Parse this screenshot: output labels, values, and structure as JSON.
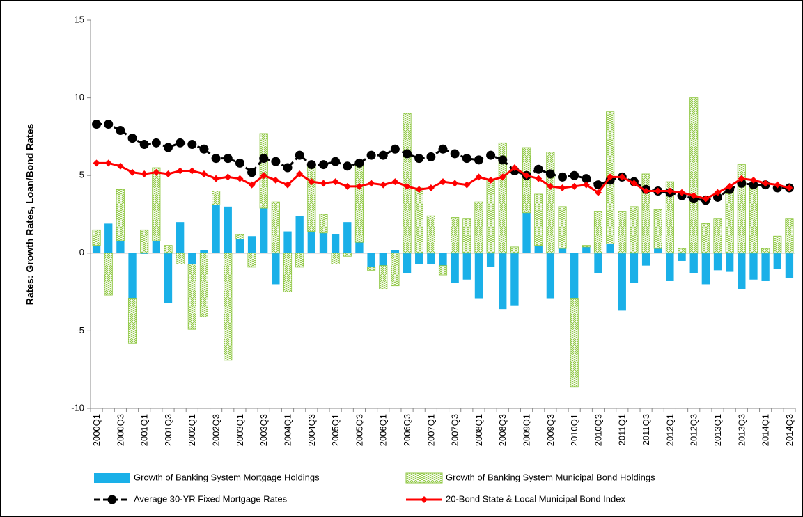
{
  "chart_data": {
    "type": "bar-line",
    "y_axis_label": "Rates:  Growth Rates, Loan/Bond Rates",
    "categories": [
      "2000Q1",
      null,
      "2000Q3",
      null,
      "2001Q1",
      null,
      "2001Q3",
      null,
      "2002Q1",
      null,
      "2002Q3",
      null,
      "2003Q1",
      null,
      "2003Q3",
      null,
      "2004Q1",
      null,
      "2004Q3",
      null,
      "2005Q1",
      null,
      "2005Q3",
      null,
      "2006Q1",
      null,
      "2006Q3",
      null,
      "2007Q1",
      null,
      "2007Q3",
      null,
      "2008Q1",
      null,
      "2008Q3",
      null,
      "2009Q1",
      null,
      "2009Q3",
      null,
      "2010Q1",
      null,
      "2010Q3",
      null,
      "2011Q1",
      null,
      "2011Q3",
      null,
      "2012Q1",
      null,
      "2012Q3",
      null,
      "2013Q1",
      null,
      "2013Q3",
      null,
      "2014Q1",
      null,
      "2014Q3"
    ],
    "ylim": [
      -10,
      15
    ],
    "yticks": [
      -10,
      -5,
      0,
      5,
      10,
      15
    ],
    "stacked": true,
    "series": [
      {
        "name": "Growth of Banking System Mortgage Holdings",
        "kind": "bar",
        "color": "#1ab0e8",
        "values": [
          0.5,
          1.9,
          0.8,
          -2.9,
          -0.05,
          0.8,
          -3.2,
          2.0,
          -0.7,
          0.2,
          3.1,
          3.0,
          0.9,
          1.1,
          2.9,
          -2.0,
          1.4,
          2.4,
          1.4,
          1.3,
          1.2,
          2.0,
          0.7,
          -0.9,
          -0.8,
          0.2,
          -1.3,
          -0.7,
          -0.7,
          -0.8,
          -1.9,
          -1.7,
          -2.9,
          -0.9,
          -3.6,
          -3.4,
          2.6,
          0.5,
          -2.9,
          0.3,
          -2.9,
          0.4,
          -1.3,
          0.6,
          -3.7,
          -1.9,
          -0.8,
          0.3,
          -1.8,
          -0.5,
          -1.3,
          -2.0,
          -1.1,
          -1.2,
          -2.3,
          -1.7,
          -1.8,
          -1.0,
          -1.6
        ]
      },
      {
        "name": "Growth of Banking System Municipal Bond Holdings",
        "kind": "bar",
        "color": "#8dc63f",
        "values": [
          1.0,
          -2.7,
          3.3,
          -2.9,
          1.5,
          4.7,
          0.5,
          -0.7,
          -4.2,
          -4.1,
          0.9,
          -6.9,
          0.3,
          -0.9,
          4.8,
          3.3,
          -2.5,
          -0.9,
          4.3,
          1.2,
          -0.7,
          -0.2,
          5.0,
          -0.2,
          -1.5,
          -2.1,
          9.0,
          4.2,
          2.4,
          -0.6,
          2.3,
          2.2,
          3.3,
          4.7,
          7.1,
          0.4,
          4.2,
          3.3,
          6.5,
          2.7,
          -5.7,
          0.1,
          2.7,
          8.5,
          2.7,
          3.0,
          5.1,
          2.5,
          4.6,
          0.3,
          10.0,
          1.9,
          2.2,
          4.1,
          5.7,
          4.3,
          0.3,
          1.1,
          2.2
        ]
      },
      {
        "name": "Average 30-YR Fixed Mortgage Rates",
        "kind": "line",
        "color": "#000000",
        "dashed": true,
        "marker": "circle",
        "values": [
          8.3,
          8.3,
          7.9,
          7.4,
          7.0,
          7.1,
          6.8,
          7.1,
          7.0,
          6.7,
          6.1,
          6.1,
          5.8,
          5.2,
          6.1,
          5.9,
          5.5,
          6.3,
          5.7,
          5.7,
          5.9,
          5.6,
          5.8,
          6.3,
          6.3,
          6.7,
          6.4,
          6.1,
          6.2,
          6.7,
          6.4,
          6.1,
          6.0,
          6.3,
          6.0,
          5.3,
          5.0,
          5.4,
          5.1,
          4.9,
          5.0,
          4.8,
          4.4,
          4.7,
          4.9,
          4.6,
          4.1,
          4.0,
          3.9,
          3.7,
          3.5,
          3.4,
          3.6,
          4.1,
          4.5,
          4.4,
          4.4,
          4.2,
          4.2
        ]
      },
      {
        "name": "20-Bond State & Local Municipal Bond Index",
        "kind": "line",
        "color": "#ff0000",
        "dashed": false,
        "marker": "diamond",
        "values": [
          5.8,
          5.8,
          5.6,
          5.2,
          5.1,
          5.2,
          5.1,
          5.3,
          5.3,
          5.1,
          4.8,
          4.9,
          4.8,
          4.4,
          5.0,
          4.7,
          4.4,
          5.1,
          4.6,
          4.5,
          4.6,
          4.3,
          4.3,
          4.5,
          4.4,
          4.6,
          4.3,
          4.1,
          4.2,
          4.6,
          4.5,
          4.4,
          4.9,
          4.7,
          4.9,
          5.5,
          5.0,
          4.8,
          4.3,
          4.2,
          4.3,
          4.4,
          3.9,
          4.9,
          4.9,
          4.5,
          4.0,
          4.0,
          4.0,
          3.9,
          3.7,
          3.5,
          3.9,
          4.3,
          4.8,
          4.7,
          4.5,
          4.4,
          4.2
        ]
      }
    ]
  }
}
